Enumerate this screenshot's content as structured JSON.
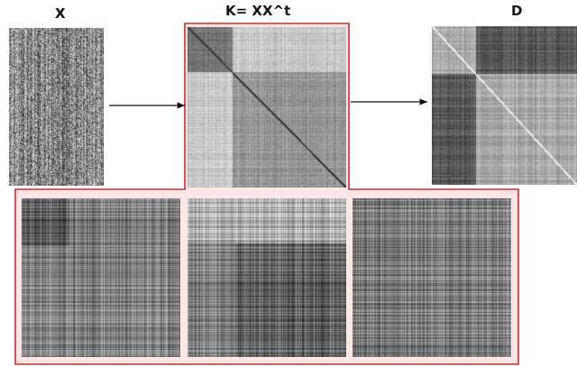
{
  "labels": {
    "x": "X",
    "k": "K= XX^t",
    "d": "D"
  },
  "colors": {
    "highlight_border": "#d9272e",
    "highlight_fill": "#fde6e6",
    "arrow": "#111111",
    "background": "#ffffff"
  },
  "matrices": {
    "x": {
      "kind": "noise-columns",
      "description": "data-matrix"
    },
    "k": {
      "kind": "block-kernel",
      "diagonal": "dark"
    },
    "d": {
      "kind": "block-distance",
      "diagonal": "light"
    },
    "zoom": [
      {
        "kind": "crosshatch-dark-top-left"
      },
      {
        "kind": "crosshatch-light-top"
      },
      {
        "kind": "crosshatch-uniform"
      }
    ]
  }
}
